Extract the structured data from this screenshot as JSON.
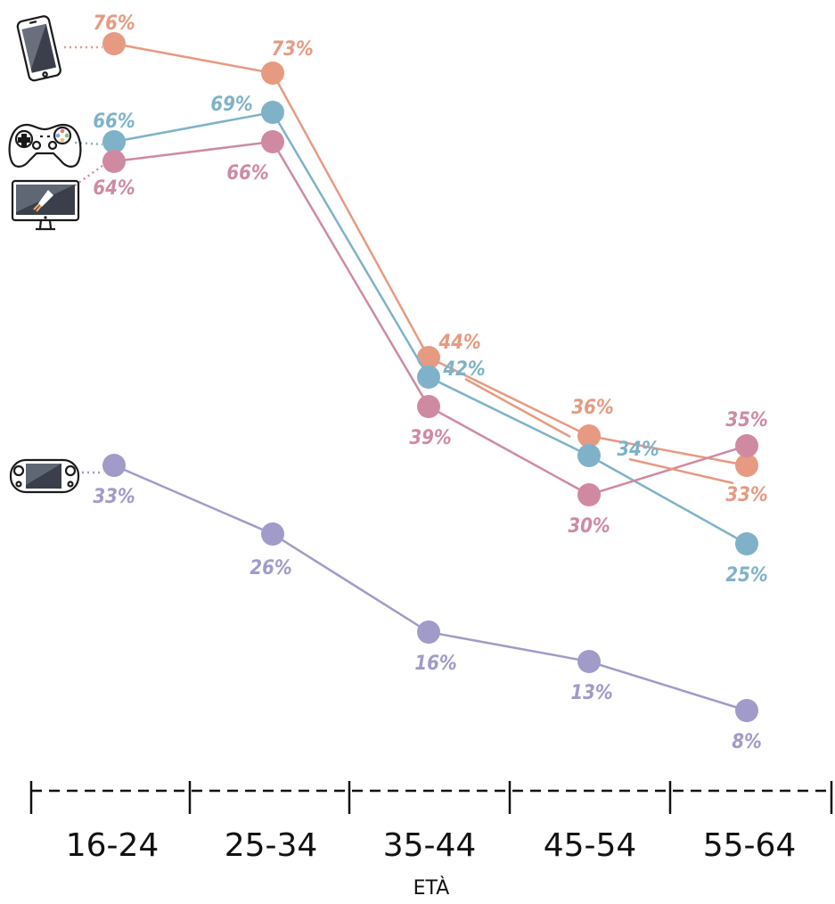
{
  "chart_data": {
    "type": "line",
    "categories": [
      "16-24",
      "25-34",
      "35-44",
      "45-54",
      "55-64"
    ],
    "xlabel": "ETÀ",
    "ylabel": "",
    "ylim": [
      0,
      100
    ],
    "grid": false,
    "series": [
      {
        "icon": "smartphone-icon",
        "color": "#E69A82",
        "values": [
          76,
          73,
          44,
          36,
          33
        ],
        "labels": [
          "76%",
          "73%",
          "44%",
          "36%",
          "33%"
        ]
      },
      {
        "icon": "gamepad-icon",
        "color": "#7FB2C8",
        "values": [
          66,
          69,
          42,
          34,
          25
        ],
        "labels": [
          "66%",
          "69%",
          "42%",
          "34%",
          "25%"
        ]
      },
      {
        "icon": "computer-monitor-icon",
        "color": "#CF8AA2",
        "values": [
          64,
          66,
          39,
          30,
          35
        ],
        "labels": [
          "64%",
          "66%",
          "39%",
          "30%",
          "35%"
        ]
      },
      {
        "icon": "handheld-console-icon",
        "color": "#A09BC8",
        "values": [
          33,
          26,
          16,
          13,
          8
        ],
        "labels": [
          "33%",
          "26%",
          "16%",
          "13%",
          "8%"
        ]
      }
    ]
  }
}
